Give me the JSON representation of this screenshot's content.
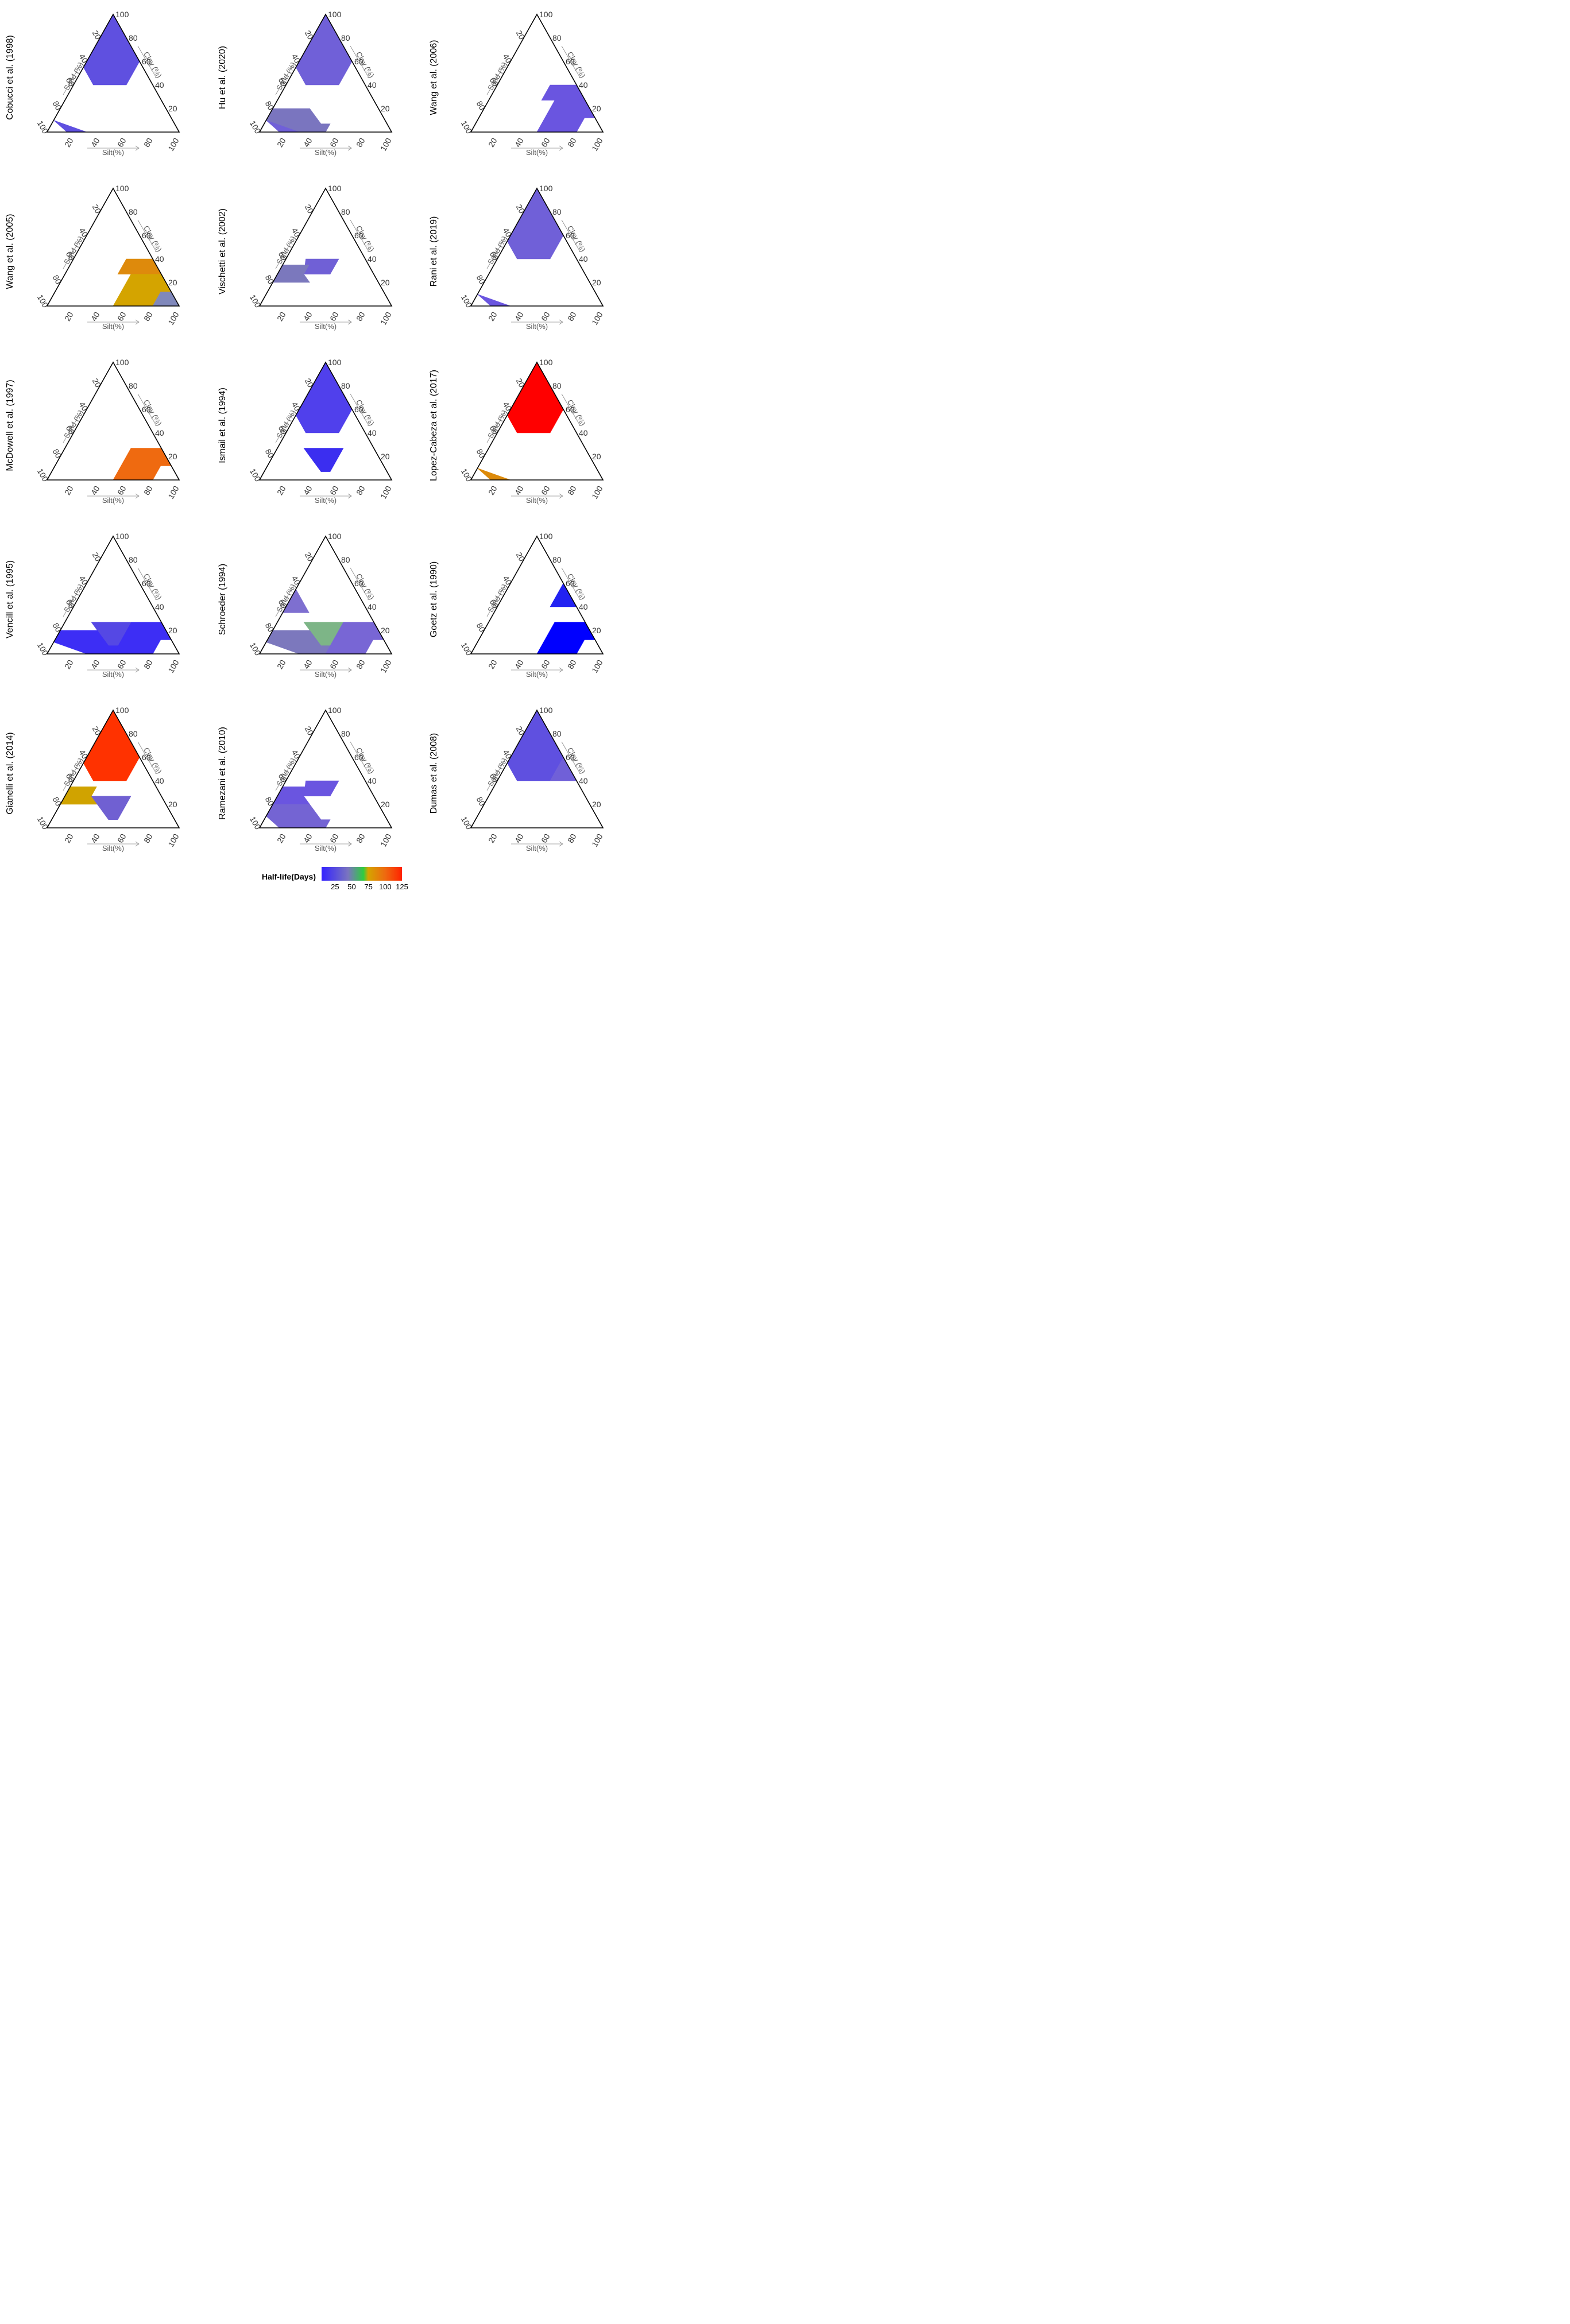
{
  "chart_data": [
    {
      "type": "ternary",
      "title": "Cobucci et al. (1998)",
      "regions": [
        {
          "name": "clay",
          "value": 25,
          "color": "#5f50e0"
        },
        {
          "name": "loamy sand",
          "value": 25,
          "color": "#5f50e0"
        }
      ]
    },
    {
      "type": "ternary",
      "title": "Hu et al. (2020)",
      "regions": [
        {
          "name": "clay",
          "value": 37,
          "color": "#7060d8"
        },
        {
          "name": "sandy loam",
          "value": 45,
          "color": "#7a75bf"
        },
        {
          "name": "loamy sand",
          "value": 37,
          "color": "#7060d8"
        }
      ]
    },
    {
      "type": "ternary",
      "title": "Wang et al. (2006)",
      "regions": [
        {
          "name": "silty clay loam",
          "value": 26,
          "color": "#6a55e0"
        },
        {
          "name": "silt loam",
          "value": 26,
          "color": "#6a55e0"
        }
      ]
    },
    {
      "type": "ternary",
      "title": "Wang et al. (2005)",
      "regions": [
        {
          "name": "silty clay loam",
          "value": 80,
          "color": "#de8a0c"
        },
        {
          "name": "silt loam",
          "value": 72,
          "color": "#d4a400"
        },
        {
          "name": "silt",
          "value": 48,
          "color": "#8088bb"
        }
      ]
    },
    {
      "type": "ternary",
      "title": "Vischetti et al. (2002)",
      "regions": [
        {
          "name": "clay loam",
          "value": 38,
          "color": "#7060d6"
        },
        {
          "name": "sandy clay loam",
          "value": 45,
          "color": "#7b78bd"
        }
      ]
    },
    {
      "type": "ternary",
      "title": "Rani et al. (2019)",
      "regions": [
        {
          "name": "clay",
          "value": 37,
          "color": "#7060d8"
        },
        {
          "name": "loamy sand",
          "value": 30,
          "color": "#6a55e0"
        }
      ]
    },
    {
      "type": "ternary",
      "title": "McDowell et al. (1997)",
      "regions": [
        {
          "name": "silt loam",
          "value": 98,
          "color": "#ef6a10"
        }
      ]
    },
    {
      "type": "ternary",
      "title": "Ismail et al. (1994)",
      "regions": [
        {
          "name": "clay",
          "value": 18,
          "color": "#5040ec"
        },
        {
          "name": "loam",
          "value": 12,
          "color": "#3b2ef0"
        }
      ]
    },
    {
      "type": "ternary",
      "title": "Lopez-Cabeza et al. (2017)",
      "regions": [
        {
          "name": "clay",
          "value": 125,
          "color": "#ff0000"
        },
        {
          "name": "loamy sand",
          "value": 78,
          "color": "#dc8a0a"
        }
      ]
    },
    {
      "type": "ternary",
      "title": "Vencill et al. (1995)",
      "regions": [
        {
          "name": "silt loam",
          "value": 15,
          "color": "#3d2ef5"
        },
        {
          "name": "loam",
          "value": 25,
          "color": "#5548e4"
        },
        {
          "name": "sandy loam",
          "value": 15,
          "color": "#3d2ef5"
        }
      ]
    },
    {
      "type": "ternary",
      "title": "Schroeder (1994)",
      "regions": [
        {
          "name": "sandy clay",
          "value": 40,
          "color": "#7e6fd0"
        },
        {
          "name": "loam",
          "value": 58,
          "color": "#7db587"
        },
        {
          "name": "sandy loam",
          "value": 42,
          "color": "#7c78bd"
        },
        {
          "name": "silt loam",
          "value": 38,
          "color": "#7866d5"
        }
      ]
    },
    {
      "type": "ternary",
      "title": "Goetz et al. (1990)",
      "regions": [
        {
          "name": "silty clay",
          "value": 5,
          "color": "#2222f2"
        },
        {
          "name": "silt loam",
          "value": 5,
          "color": "#0000ff"
        }
      ]
    },
    {
      "type": "ternary",
      "title": "Gianelli et al. (2014)",
      "regions": [
        {
          "name": "clay",
          "value": 115,
          "color": "#ff3200"
        },
        {
          "name": "sandy clay loam",
          "value": 70,
          "color": "#d0a300"
        },
        {
          "name": "loam",
          "value": 38,
          "color": "#7060d2"
        }
      ]
    },
    {
      "type": "ternary",
      "title": "Ramezani et al. (2010)",
      "regions": [
        {
          "name": "sandy clay loam",
          "value": 32,
          "color": "#6a55e0"
        },
        {
          "name": "clay loam",
          "value": 32,
          "color": "#6a55e0"
        },
        {
          "name": "sandy loam",
          "value": 40,
          "color": "#7464d3"
        },
        {
          "name": "loamy sand",
          "value": 40,
          "color": "#7464d3"
        }
      ]
    },
    {
      "type": "ternary",
      "title": "Dumas et al. (2008)",
      "regions": [
        {
          "name": "clay",
          "value": 25,
          "color": "#5f50e0"
        },
        {
          "name": "silty clay",
          "value": 35,
          "color": "#7060d8"
        }
      ]
    }
  ],
  "axes": {
    "sand_label": "Sand (%)",
    "clay_label": "Clay (%)",
    "silt_label": "Silt(%)",
    "ticks": [
      "20",
      "40",
      "60",
      "80",
      "100"
    ]
  },
  "legend": {
    "title": "Half-life(Days)",
    "ticks": [
      "25",
      "50",
      "75",
      "100",
      "125"
    ],
    "range": [
      5,
      125
    ],
    "colors": [
      "#3322ff",
      "#7a75bf",
      "#2ecc40",
      "#d4a400",
      "#ee6a10",
      "#ff2200"
    ]
  }
}
